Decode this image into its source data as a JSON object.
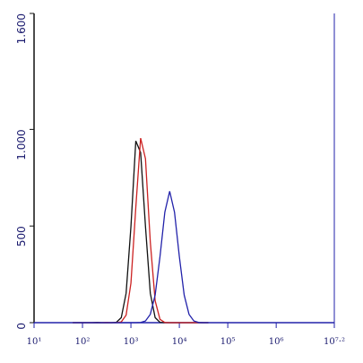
{
  "chart_data": {
    "type": "line",
    "xscale": "log",
    "x": [
      63,
      79,
      100,
      126,
      158,
      200,
      251,
      316,
      398,
      501,
      631,
      794,
      1000,
      1259,
      1585,
      1995,
      2512,
      3162,
      3981,
      5012,
      6310,
      7943,
      10000,
      12589,
      15849,
      19953,
      25119,
      31623,
      39811
    ],
    "series": [
      {
        "color": "#111111",
        "values": [
          0,
          0,
          0,
          0,
          0,
          1,
          0,
          0,
          0,
          2,
          26,
          152,
          498,
          940,
          880,
          498,
          152,
          26,
          2,
          0,
          0,
          0,
          0,
          0,
          0,
          0,
          0,
          0,
          0
        ]
      },
      {
        "color": "#cc2222",
        "values": [
          0,
          0,
          0,
          0,
          0,
          0,
          0,
          1,
          0,
          0,
          4,
          39,
          205,
          595,
          955,
          848,
          417,
          113,
          17,
          1,
          0,
          0,
          0,
          0,
          0,
          0,
          0,
          0,
          0
        ]
      },
      {
        "color": "#2222aa",
        "values": [
          0,
          0,
          0,
          0,
          0,
          0,
          0,
          0,
          0,
          0,
          0,
          0,
          0,
          0,
          1,
          9,
          43,
          143,
          342,
          572,
          680,
          572,
          342,
          143,
          43,
          9,
          1,
          0,
          0
        ]
      }
    ],
    "xlim": [
      10,
      15848932
    ],
    "xticks": [
      {
        "value": 10,
        "label": "10¹"
      },
      {
        "value": 100,
        "label": "10²"
      },
      {
        "value": 1000,
        "label": "10³"
      },
      {
        "value": 10000,
        "label": "10⁴"
      },
      {
        "value": 100000,
        "label": "10⁵"
      },
      {
        "value": 1000000,
        "label": "10⁶"
      },
      {
        "value": 15848932,
        "label": "10⁷·²"
      }
    ],
    "ylim": [
      0,
      1600
    ],
    "yticks": [
      0,
      500,
      {
        "value": 1000,
        "label": "1.000"
      },
      {
        "value": 1600,
        "label": "1.600"
      }
    ]
  }
}
